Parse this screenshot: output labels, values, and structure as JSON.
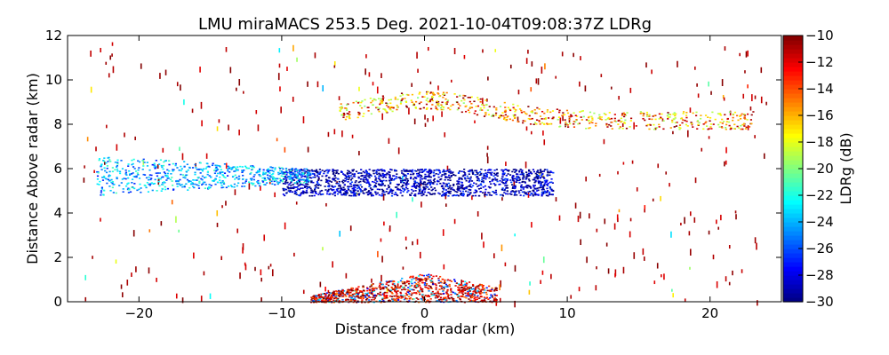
{
  "chart_data": {
    "type": "scatter",
    "title": "LMU miraMACS 253.5 Deg. 2021-10-04T09:08:37Z  LDRg",
    "xlabel": "Distance from radar (km)",
    "ylabel": "Distance Above radar  (km)",
    "xlim": [
      -25,
      25
    ],
    "ylim": [
      0,
      12
    ],
    "xticks": [
      -20,
      -10,
      0,
      10,
      20
    ],
    "xtick_labels": [
      "−20",
      "−10",
      "0",
      "10",
      "20"
    ],
    "yticks": [
      0,
      2,
      4,
      6,
      8,
      10,
      12
    ],
    "ytick_labels": [
      "0",
      "2",
      "4",
      "6",
      "8",
      "10",
      "12"
    ],
    "colorbar": {
      "label": "LDRg (dB)",
      "range": [
        -30,
        -10
      ],
      "ticks": [
        -10,
        -12,
        -14,
        -16,
        -18,
        -20,
        -22,
        -24,
        -26,
        -28,
        -30
      ],
      "tick_labels": [
        "−10",
        "−12",
        "−14",
        "−16",
        "−18",
        "−20",
        "−22",
        "−24",
        "−26",
        "−28",
        "−30"
      ],
      "colormap": "jet"
    },
    "features": [
      {
        "name": "dense cloud layer",
        "x_range": [
          -10,
          9
        ],
        "height_km": [
          4.8,
          6.0
        ],
        "ldr_db": -29
      },
      {
        "name": "broad tilted layer",
        "x_range": [
          -23,
          -8
        ],
        "height_km": [
          5.0,
          7.0
        ],
        "ldr_db": -24
      },
      {
        "name": "upper arc layer",
        "x_range": [
          -6,
          23
        ],
        "height_km": [
          7.8,
          9.0
        ],
        "ldr_db": -17
      },
      {
        "name": "near-ground clutter",
        "x_range": [
          -8,
          5
        ],
        "height_km": [
          0,
          1.3
        ],
        "ldr_db": -12
      }
    ]
  }
}
